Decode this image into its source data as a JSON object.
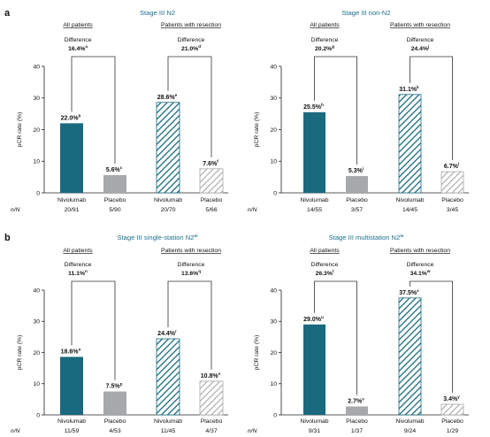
{
  "panels": [
    {
      "letter": "a"
    },
    {
      "letter": "b"
    }
  ],
  "nn_header": "n/N",
  "chart_data": [
    {
      "type": "bar",
      "title": "Stage III N2",
      "title_sup": "",
      "ylabel": "pCR rate (%)",
      "ylim": [
        0,
        40
      ],
      "yticks": [
        0,
        10,
        20,
        30,
        40
      ],
      "grid": false,
      "groups": [
        {
          "heading": "All patients",
          "diff_label": "Difference",
          "diff_value": "16.4%",
          "diff_sup": "a",
          "bars": [
            {
              "category": "Nivolumab",
              "value": 22.0,
              "label": "22.0%",
              "sup": "b",
              "nn": "20/91",
              "fill": "solid",
              "color": "#1a6a7f"
            },
            {
              "category": "Placebo",
              "value": 5.6,
              "label": "5.6%",
              "sup": "c",
              "nn": "5/90",
              "fill": "solid",
              "color": "#a6a8ab"
            }
          ]
        },
        {
          "heading": "Patients with resection",
          "diff_label": "Difference",
          "diff_value": "21.0%",
          "diff_sup": "d",
          "bars": [
            {
              "category": "Nivolumab",
              "value": 28.6,
              "label": "28.6%",
              "sup": "e",
              "nn": "20/70",
              "fill": "hatch",
              "color": "#1a6a7f"
            },
            {
              "category": "Placebo",
              "value": 7.6,
              "label": "7.6%",
              "sup": "f",
              "nn": "5/66",
              "fill": "hatch",
              "color": "#a6a8ab"
            }
          ]
        }
      ]
    },
    {
      "type": "bar",
      "title": "Stage III non-N2",
      "title_sup": "",
      "ylabel": "pCR rate (%)",
      "ylim": [
        0,
        40
      ],
      "yticks": [
        0,
        10,
        20,
        30,
        40
      ],
      "grid": false,
      "groups": [
        {
          "heading": "All patients",
          "diff_label": "Difference",
          "diff_value": "20.2%",
          "diff_sup": "g",
          "bars": [
            {
              "category": "Nivolumab",
              "value": 25.5,
              "label": "25.5%",
              "sup": "h",
              "nn": "14/55",
              "fill": "solid",
              "color": "#1a6a7f"
            },
            {
              "category": "Placebo",
              "value": 5.3,
              "label": "5.3%",
              "sup": "i",
              "nn": "3/57",
              "fill": "solid",
              "color": "#a6a8ab"
            }
          ]
        },
        {
          "heading": "Patients with resection",
          "diff_label": "Difference",
          "diff_value": "24.4%",
          "diff_sup": "j",
          "bars": [
            {
              "category": "Nivolumab",
              "value": 31.1,
              "label": "31.1%",
              "sup": "k",
              "nn": "14/45",
              "fill": "hatch",
              "color": "#1a6a7f"
            },
            {
              "category": "Placebo",
              "value": 6.7,
              "label": "6.7%",
              "sup": "l",
              "nn": "3/45",
              "fill": "hatch",
              "color": "#a6a8ab"
            }
          ]
        }
      ]
    },
    {
      "type": "bar",
      "title": "Stage III single-station N2",
      "title_sup": "m",
      "ylabel": "pCR rate (%)",
      "ylim": [
        0,
        40
      ],
      "yticks": [
        0,
        10,
        20,
        30,
        40
      ],
      "grid": false,
      "groups": [
        {
          "heading": "All patients",
          "diff_label": "Difference",
          "diff_value": "11.1%",
          "diff_sup": "n",
          "bars": [
            {
              "category": "Nivolumab",
              "value": 18.6,
              "label": "18.6%",
              "sup": "o",
              "nn": "11/59",
              "fill": "solid",
              "color": "#1a6a7f"
            },
            {
              "category": "Placebo",
              "value": 7.5,
              "label": "7.5%",
              "sup": "p",
              "nn": "4/53",
              "fill": "solid",
              "color": "#a6a8ab"
            }
          ]
        },
        {
          "heading": "Patients with resection",
          "diff_label": "Difference",
          "diff_value": "13.6%",
          "diff_sup": "q",
          "bars": [
            {
              "category": "Nivolumab",
              "value": 24.4,
              "label": "24.4%",
              "sup": "r",
              "nn": "11/45",
              "fill": "hatch",
              "color": "#1a6a7f"
            },
            {
              "category": "Placebo",
              "value": 10.8,
              "label": "10.8%",
              "sup": "s",
              "nn": "4/37",
              "fill": "hatch",
              "color": "#a6a8ab"
            }
          ]
        }
      ]
    },
    {
      "type": "bar",
      "title": "Stage III multistation N2",
      "title_sup": "m",
      "ylabel": "pCR rate (%)",
      "ylim": [
        0,
        40
      ],
      "yticks": [
        0,
        10,
        20,
        30,
        40
      ],
      "grid": false,
      "groups": [
        {
          "heading": "All patients",
          "diff_label": "Difference",
          "diff_value": "26.3%",
          "diff_sup": "t",
          "bars": [
            {
              "category": "Nivolumab",
              "value": 29.0,
              "label": "29.0%",
              "sup": "u",
              "nn": "9/31",
              "fill": "solid",
              "color": "#1a6a7f"
            },
            {
              "category": "Placebo",
              "value": 2.7,
              "label": "2.7%",
              "sup": "v",
              "nn": "1/37",
              "fill": "solid",
              "color": "#a6a8ab"
            }
          ]
        },
        {
          "heading": "Patients with resection",
          "diff_label": "Difference",
          "diff_value": "34.1%",
          "diff_sup": "w",
          "bars": [
            {
              "category": "Nivolumab",
              "value": 37.5,
              "label": "37.5%",
              "sup": "x",
              "nn": "9/24",
              "fill": "hatch",
              "color": "#1a6a7f"
            },
            {
              "category": "Placebo",
              "value": 3.4,
              "label": "3.4%",
              "sup": "y",
              "nn": "1/29",
              "fill": "hatch",
              "color": "#a6a8ab"
            }
          ]
        }
      ]
    }
  ]
}
